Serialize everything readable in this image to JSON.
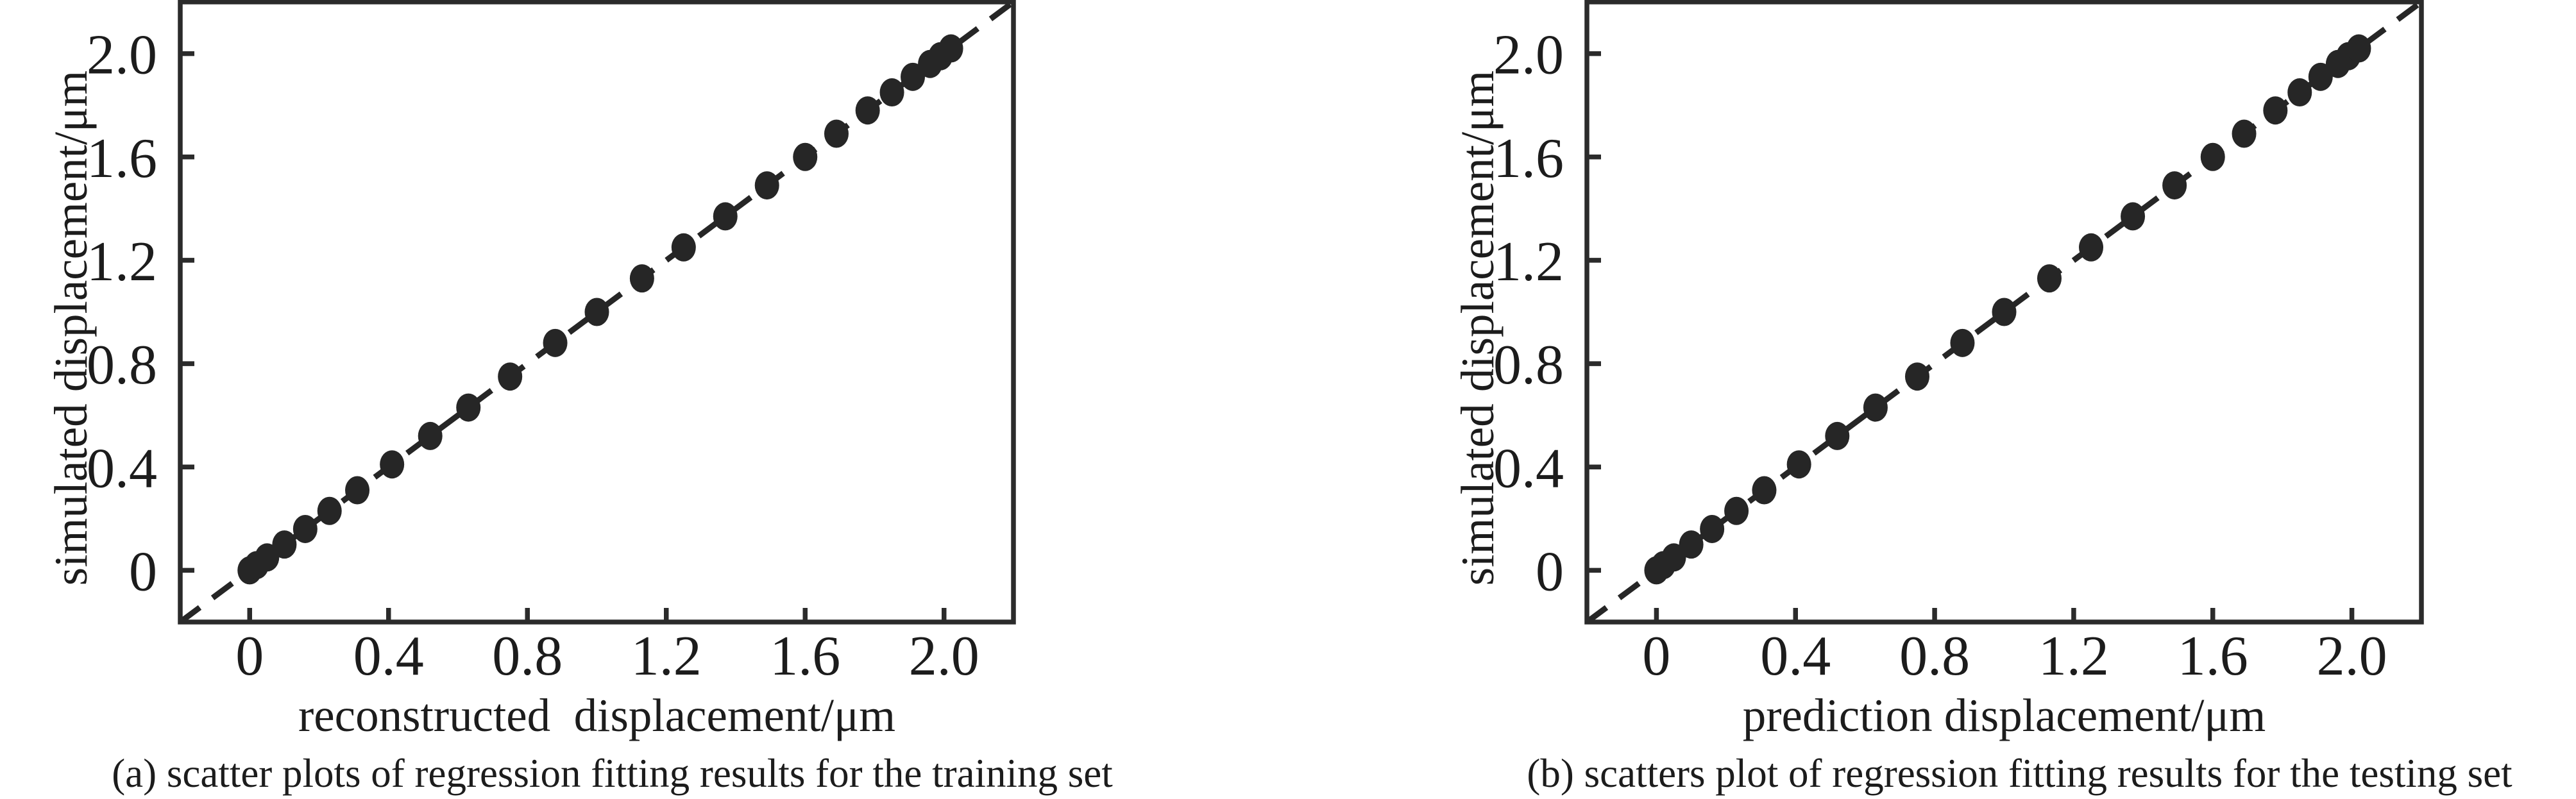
{
  "figure": {
    "background": "#ffffff",
    "ink_color": "#262626",
    "axis_color": "#2b2b2b"
  },
  "chart_data": [
    {
      "type": "scatter",
      "panel_id": "a",
      "caption": "(a) scatter plots of regression fitting results for the training set",
      "xlabel": "reconstructed  displacement/μm",
      "ylabel": "simulated displacement/μm",
      "xlim": [
        -0.2,
        2.2
      ],
      "ylim": [
        -0.2,
        2.2
      ],
      "grid": false,
      "legend": null,
      "xticks": {
        "values": [
          0,
          0.4,
          0.8,
          1.2,
          1.6,
          2.0
        ],
        "labels": [
          "0",
          "0.4",
          "0.8",
          "1.2",
          "1.6",
          "2.0"
        ]
      },
      "yticks": {
        "values": [
          0,
          0.4,
          0.8,
          1.2,
          1.6,
          2.0
        ],
        "labels": [
          "0",
          "0.4",
          "0.8",
          "1.2",
          "1.6",
          "2.0"
        ]
      },
      "identity_line": {
        "style": "dashed",
        "equation": "y = x",
        "from": [
          -0.2,
          -0.2
        ],
        "to": [
          2.2,
          2.2
        ]
      },
      "marker": {
        "shape": "ellipse",
        "color": "#262626"
      },
      "points": [
        [
          0.0,
          0.0
        ],
        [
          0.02,
          0.02
        ],
        [
          0.05,
          0.05
        ],
        [
          0.1,
          0.1
        ],
        [
          0.16,
          0.16
        ],
        [
          0.23,
          0.23
        ],
        [
          0.31,
          0.31
        ],
        [
          0.41,
          0.41
        ],
        [
          0.52,
          0.52
        ],
        [
          0.63,
          0.63
        ],
        [
          0.75,
          0.75
        ],
        [
          0.88,
          0.88
        ],
        [
          1.0,
          1.0
        ],
        [
          1.13,
          1.13
        ],
        [
          1.25,
          1.25
        ],
        [
          1.37,
          1.37
        ],
        [
          1.49,
          1.49
        ],
        [
          1.6,
          1.6
        ],
        [
          1.69,
          1.69
        ],
        [
          1.78,
          1.78
        ],
        [
          1.85,
          1.85
        ],
        [
          1.91,
          1.91
        ],
        [
          1.96,
          1.96
        ],
        [
          1.99,
          1.99
        ],
        [
          2.02,
          2.02
        ]
      ]
    },
    {
      "type": "scatter",
      "panel_id": "b",
      "caption": "(b) scatters plot of regression fitting results for the testing set",
      "xlabel": "prediction displacement/μm",
      "ylabel": "simulated displacement/μm",
      "xlim": [
        -0.2,
        2.2
      ],
      "ylim": [
        -0.2,
        2.2
      ],
      "grid": false,
      "legend": null,
      "xticks": {
        "values": [
          0,
          0.4,
          0.8,
          1.2,
          1.6,
          2.0
        ],
        "labels": [
          "0",
          "0.4",
          "0.8",
          "1.2",
          "1.6",
          "2.0"
        ]
      },
      "yticks": {
        "values": [
          0,
          0.4,
          0.8,
          1.2,
          1.6,
          2.0
        ],
        "labels": [
          "0",
          "0.4",
          "0.8",
          "1.2",
          "1.6",
          "2.0"
        ]
      },
      "identity_line": {
        "style": "dashed",
        "equation": "y = x",
        "from": [
          -0.2,
          -0.2
        ],
        "to": [
          2.2,
          2.2
        ]
      },
      "marker": {
        "shape": "ellipse",
        "color": "#262626"
      },
      "points": [
        [
          0.0,
          0.0
        ],
        [
          0.02,
          0.02
        ],
        [
          0.05,
          0.05
        ],
        [
          0.1,
          0.1
        ],
        [
          0.16,
          0.16
        ],
        [
          0.23,
          0.23
        ],
        [
          0.31,
          0.31
        ],
        [
          0.41,
          0.41
        ],
        [
          0.52,
          0.52
        ],
        [
          0.63,
          0.63
        ],
        [
          0.75,
          0.75
        ],
        [
          0.88,
          0.88
        ],
        [
          1.0,
          1.0
        ],
        [
          1.13,
          1.13
        ],
        [
          1.25,
          1.25
        ],
        [
          1.37,
          1.37
        ],
        [
          1.49,
          1.49
        ],
        [
          1.6,
          1.6
        ],
        [
          1.69,
          1.69
        ],
        [
          1.78,
          1.78
        ],
        [
          1.85,
          1.85
        ],
        [
          1.91,
          1.91
        ],
        [
          1.96,
          1.96
        ],
        [
          1.99,
          1.99
        ],
        [
          2.02,
          2.02
        ]
      ]
    }
  ]
}
